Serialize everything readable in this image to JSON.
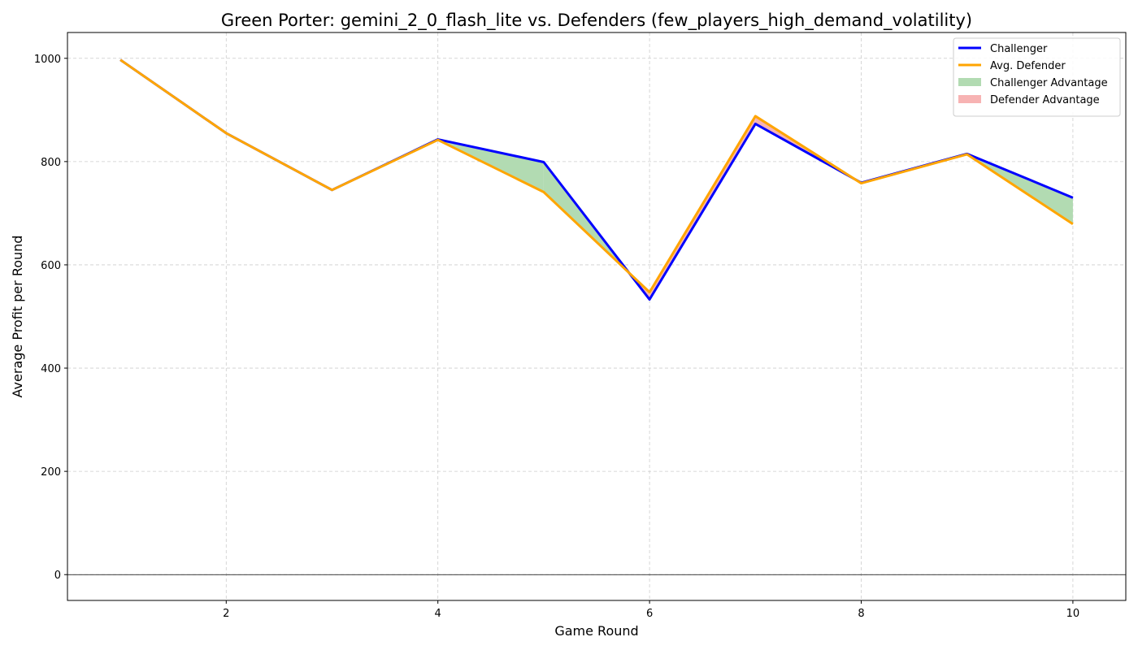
{
  "chart_data": {
    "type": "line",
    "title": "Green Porter: gemini_2_0_flash_lite vs. Defenders (few_players_high_demand_volatility)",
    "xlabel": "Game Round",
    "ylabel": "Average Profit per Round",
    "x": [
      1,
      2,
      3,
      4,
      5,
      6,
      7,
      8,
      9,
      10
    ],
    "xlim": [
      0.5,
      10.5
    ],
    "ylim": [
      -50,
      1050
    ],
    "xticks": [
      2,
      4,
      6,
      8,
      10
    ],
    "yticks": [
      0,
      200,
      400,
      600,
      800,
      1000
    ],
    "grid": true,
    "legend_position": "top-right",
    "series": [
      {
        "name": "Challenger",
        "color": "#0000ff",
        "values": [
          997,
          855,
          745,
          843,
          799,
          533,
          873,
          759,
          815,
          730
        ]
      },
      {
        "name": "Avg. Defender",
        "color": "#ffa500",
        "values": [
          997,
          855,
          745,
          842,
          741,
          547,
          888,
          758,
          814,
          679
        ]
      }
    ],
    "fill_legend": [
      {
        "name": "Challenger Advantage",
        "color": "#b2dbb2"
      },
      {
        "name": "Defender Advantage",
        "color": "#f7b3b3"
      }
    ]
  }
}
